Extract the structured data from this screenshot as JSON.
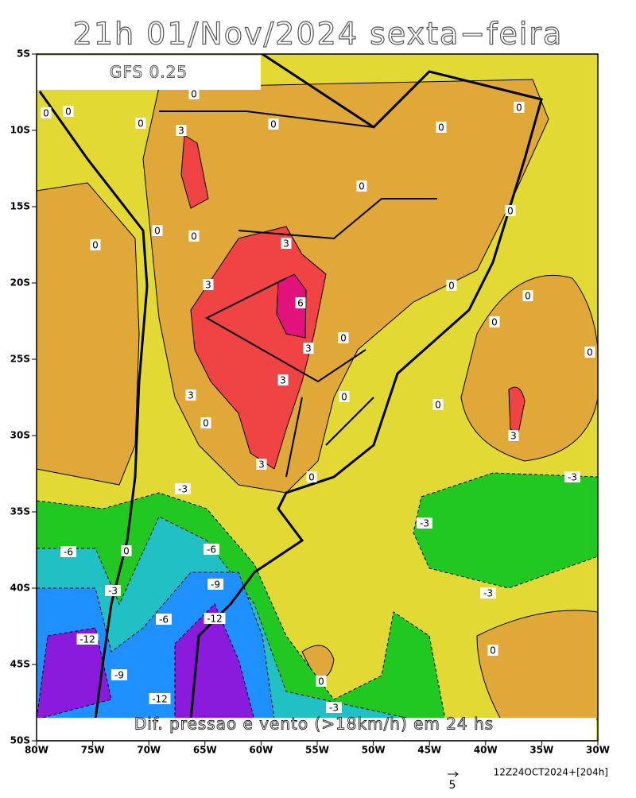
{
  "title": "21h 01/Nov/2024 sexta−feira",
  "model": "GFS 0.25",
  "caption": "Dif. pressao e vento (>18km/h) em 24 hs",
  "run": "12Z24OCT2024+[204h]",
  "vector_scale": 5,
  "map": {
    "xlim": [
      -80,
      -30
    ],
    "ylim": [
      -5,
      -50
    ],
    "xticks": [
      {
        "value": -80,
        "label": "80W"
      },
      {
        "value": -75,
        "label": "75W"
      },
      {
        "value": -70,
        "label": "70W"
      },
      {
        "value": -65,
        "label": "65W"
      },
      {
        "value": -60,
        "label": "60W"
      },
      {
        "value": -55,
        "label": "55W"
      },
      {
        "value": -50,
        "label": "50W"
      },
      {
        "value": -45,
        "label": "45W"
      },
      {
        "value": -40,
        "label": "40W"
      },
      {
        "value": -35,
        "label": "35W"
      },
      {
        "value": -30,
        "label": "30W"
      }
    ],
    "yticks": [
      {
        "value": -5,
        "label": "5S"
      },
      {
        "value": -10,
        "label": "10S"
      },
      {
        "value": -15,
        "label": "15S"
      },
      {
        "value": -20,
        "label": "20S"
      },
      {
        "value": -25,
        "label": "25S"
      },
      {
        "value": -30,
        "label": "30S"
      },
      {
        "value": -35,
        "label": "35S"
      },
      {
        "value": -40,
        "label": "40S"
      },
      {
        "value": -45,
        "label": "45S"
      },
      {
        "value": -50,
        "label": "50S"
      }
    ],
    "contour_labels": [
      0,
      0,
      0,
      0,
      3,
      0,
      0,
      0,
      0,
      0,
      0,
      0,
      0,
      3,
      3,
      6,
      0,
      0,
      0,
      0,
      3,
      0,
      3,
      3,
      0,
      0,
      0,
      3,
      3,
      0,
      -3,
      -3,
      -3,
      -6,
      0,
      -6,
      -3,
      -9,
      -3,
      -6,
      -12,
      -12,
      0,
      -9,
      0,
      -12,
      -3
    ]
  }
}
